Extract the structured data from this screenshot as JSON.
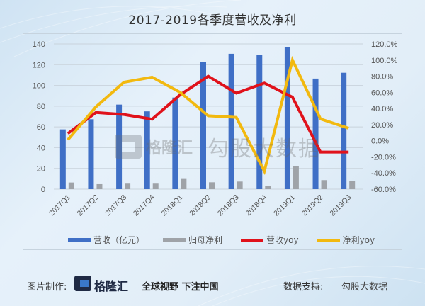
{
  "title": "2017-2019各季度营收及净利",
  "chart_data": {
    "type": "bar",
    "title": "2017-2019各季度营收及净利",
    "categories": [
      "2017Q1",
      "2017Q2",
      "2017Q3",
      "2017Q4",
      "2018Q1",
      "2018Q2",
      "2018Q3",
      "2018Q4",
      "2019Q1",
      "2019Q2",
      "2019Q3"
    ],
    "series": [
      {
        "name": "营收（亿元）",
        "type": "bar",
        "axis": "left",
        "color": "#3f6fc6",
        "values": [
          57.6,
          67.4,
          81.5,
          75.0,
          88.3,
          122.5,
          130.5,
          129.3,
          136.8,
          106.6,
          112.2
        ]
      },
      {
        "name": "归母净利",
        "type": "bar",
        "axis": "left",
        "color": "#9fa3a8",
        "values": [
          6.4,
          4.8,
          5.3,
          5.3,
          10.5,
          6.6,
          7.3,
          2.9,
          22.3,
          8.7,
          8.2
        ]
      },
      {
        "name": "营收yoy",
        "type": "line",
        "axis": "right",
        "color": "#e0121b",
        "values": [
          9.0,
          35.0,
          32.5,
          26.7,
          57.0,
          80.0,
          59.0,
          71.5,
          54.0,
          -14.0,
          -14.0
        ]
      },
      {
        "name": "净利yoy",
        "type": "line",
        "axis": "right",
        "color": "#f2b90f",
        "values": [
          1.2,
          42.0,
          72.6,
          78.8,
          60.0,
          31.0,
          29.0,
          -37.7,
          100.0,
          27.0,
          15.5
        ]
      }
    ],
    "y_left": {
      "min": 0,
      "max": 140,
      "ticks": [
        "0",
        "20",
        "40",
        "60",
        "80",
        "100",
        "120",
        "140"
      ]
    },
    "y_right": {
      "min": -60,
      "max": 120,
      "unit": "%",
      "ticks": [
        "-60.0%",
        "-40.0%",
        "-20.0%",
        "0.0%",
        "20.0%",
        "40.0%",
        "60.0%",
        "80.0%",
        "100.0%",
        "120.0%"
      ]
    },
    "xlabel": "",
    "ylabel": "",
    "grid": true,
    "legend_position": "bottom"
  },
  "legend": [
    {
      "label": "营收（亿元）",
      "color": "#3f6fc6",
      "kind": "bar"
    },
    {
      "label": "归母净利",
      "color": "#9fa3a8",
      "kind": "bar"
    },
    {
      "label": "营收yoy",
      "color": "#e0121b",
      "kind": "line"
    },
    {
      "label": "净利yoy",
      "color": "#f2b90f",
      "kind": "line"
    }
  ],
  "watermark": {
    "brand": "格隆汇",
    "text": "勾股大数据"
  },
  "footer": {
    "made_label": "图片制作:",
    "brand": "格隆汇",
    "slogan": "全球视野 下注中国",
    "support_label": "数据支持:",
    "support_value": "勾股大数据"
  }
}
